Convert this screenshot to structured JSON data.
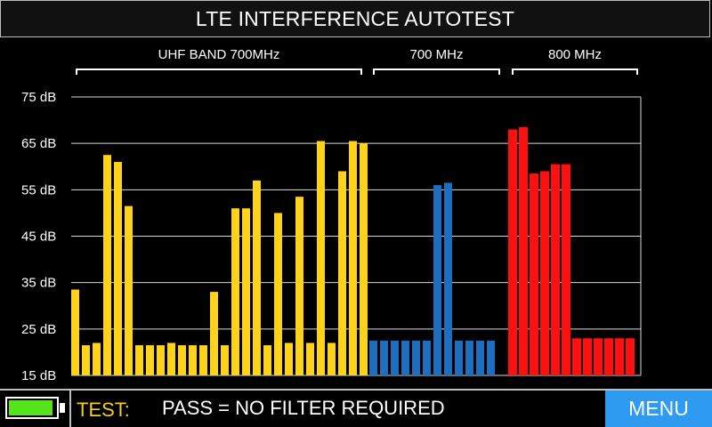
{
  "header": {
    "title": "LTE INTERFERENCE AUTOTEST"
  },
  "bands": [
    {
      "label": "UHF BAND 700MHz",
      "color": "#ffd319",
      "values": [
        33.5,
        21.5,
        22,
        62.5,
        61,
        51.5,
        21.5,
        21.5,
        21.5,
        22,
        21.5,
        21.5,
        21.5,
        33,
        21.5,
        51,
        51,
        57,
        21.5,
        50,
        22,
        53.5,
        22,
        65.5,
        22,
        59,
        65.5,
        65
      ]
    },
    {
      "label": "700 MHz",
      "color": "#1f6dbf",
      "values": [
        22.5,
        22.5,
        22.5,
        22.5,
        22.5,
        22.5,
        56,
        56.5,
        22.5,
        22.5,
        22.5,
        22.5
      ]
    },
    {
      "label": "800 MHz",
      "color": "#ff1010",
      "values": [
        68,
        68.5,
        58.5,
        59,
        60.5,
        60.5,
        23,
        23,
        23,
        23,
        23,
        23
      ]
    }
  ],
  "chart_data": {
    "type": "bar",
    "ylabel_unit": "dB",
    "ylim": [
      15,
      75
    ],
    "yticks": [
      "75 dB",
      "65 dB",
      "55 dB",
      "45 dB",
      "35 dB",
      "25 dB",
      "15 dB"
    ],
    "grid": true
  },
  "footer": {
    "battery_level": 0.95,
    "battery_color": "#55e31c",
    "test_label": "TEST:",
    "test_result": "PASS = NO FILTER REQUIRED",
    "menu_label": "MENU",
    "menu_color": "#2f9bf0"
  }
}
